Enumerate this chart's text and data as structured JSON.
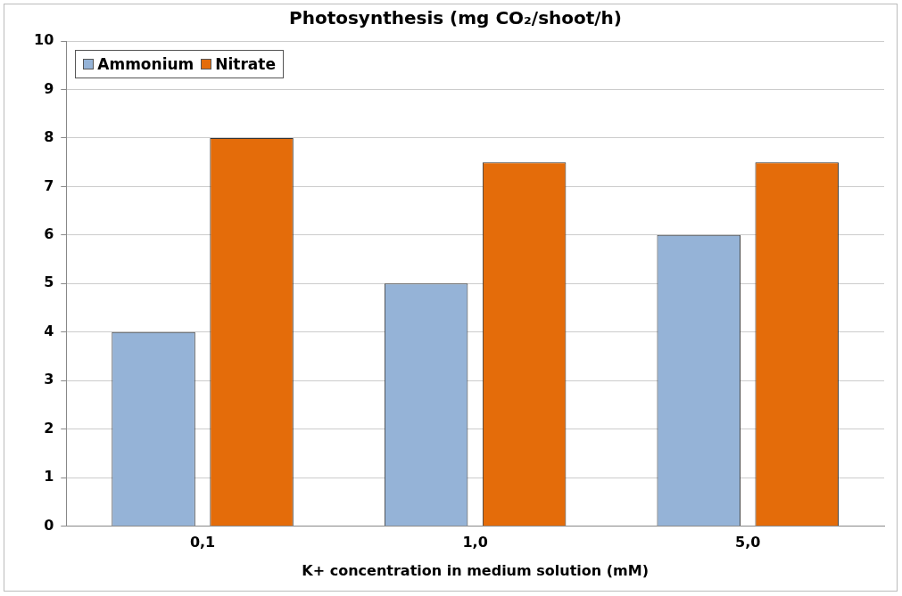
{
  "chart_data": {
    "type": "bar",
    "title": "Photosynthesis (mg CO₂/shoot/h)",
    "xlabel": "K+ concentration in medium solution (mM)",
    "categories": [
      "0,1",
      "1,0",
      "5,0"
    ],
    "series": [
      {
        "name": "Ammonium",
        "color": "#95b3d7",
        "values": [
          4,
          5,
          6
        ]
      },
      {
        "name": "Nitrate",
        "color": "#e46c0a",
        "values": [
          8,
          7.5,
          7.5
        ]
      }
    ],
    "ylim": [
      0,
      10
    ],
    "yticks": [
      0,
      1,
      2,
      3,
      4,
      5,
      6,
      7,
      8,
      9,
      10
    ],
    "grid": "y",
    "legend": "top left"
  }
}
